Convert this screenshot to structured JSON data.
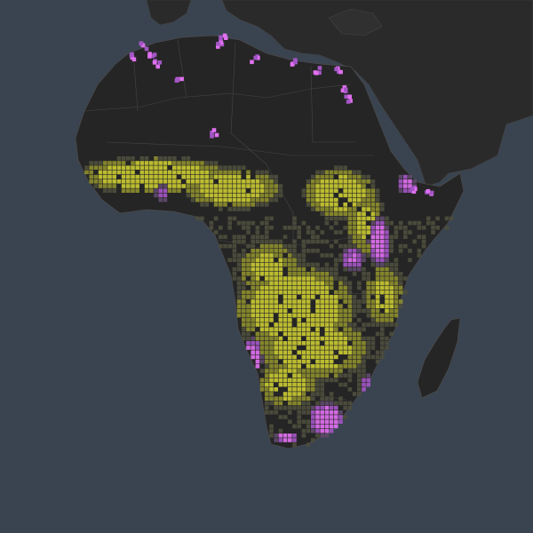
{
  "map": {
    "view": "Africa",
    "style": "dark basemap with hexbin / grid density overlay",
    "colors": {
      "ocean": "#3a4350",
      "land": "#262626",
      "land_light": "#2e2e2e",
      "borders": "#4a4a4a",
      "grid_low": "#4d4d3d",
      "grid_mid": "#8c8c2e",
      "grid_high": "#c8c832",
      "grid_purple_low": "#5e4a6a",
      "grid_purple": "#a355c4",
      "grid_magenta": "#e070f0",
      "grid_yellow_hot": "#e8e020"
    },
    "layers": [
      {
        "name": "basemap-land",
        "type": "polygon"
      },
      {
        "name": "country-borders",
        "type": "line"
      },
      {
        "name": "density-grid",
        "type": "grid",
        "value_range": [
          "low",
          "high"
        ]
      }
    ]
  }
}
